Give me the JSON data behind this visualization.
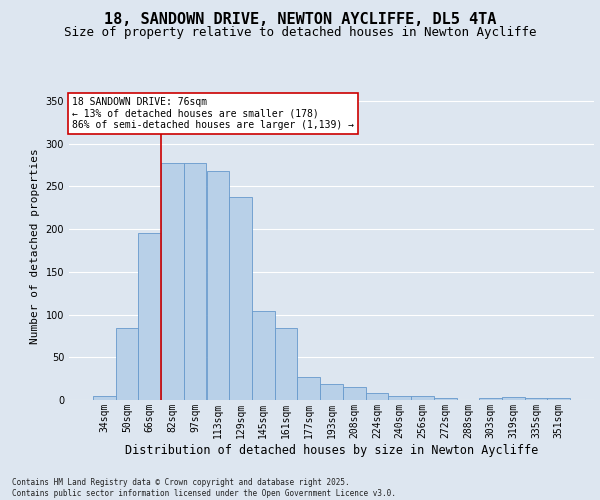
{
  "title": "18, SANDOWN DRIVE, NEWTON AYCLIFFE, DL5 4TA",
  "subtitle": "Size of property relative to detached houses in Newton Aycliffe",
  "xlabel": "Distribution of detached houses by size in Newton Aycliffe",
  "ylabel": "Number of detached properties",
  "categories": [
    "34sqm",
    "50sqm",
    "66sqm",
    "82sqm",
    "97sqm",
    "113sqm",
    "129sqm",
    "145sqm",
    "161sqm",
    "177sqm",
    "193sqm",
    "208sqm",
    "224sqm",
    "240sqm",
    "256sqm",
    "272sqm",
    "288sqm",
    "303sqm",
    "319sqm",
    "335sqm",
    "351sqm"
  ],
  "values": [
    5,
    84,
    196,
    278,
    278,
    268,
    238,
    104,
    84,
    27,
    19,
    15,
    8,
    5,
    5,
    2,
    0,
    2,
    3,
    2,
    2
  ],
  "bar_color": "#b8d0e8",
  "bar_edge_color": "#6699cc",
  "vline_color": "#cc0000",
  "annotation_text": "18 SANDOWN DRIVE: 76sqm\n← 13% of detached houses are smaller (178)\n86% of semi-detached houses are larger (1,139) →",
  "annotation_box_color": "#ffffff",
  "annotation_border_color": "#cc0000",
  "ylim": [
    0,
    360
  ],
  "yticks": [
    0,
    50,
    100,
    150,
    200,
    250,
    300,
    350
  ],
  "background_color": "#dde6f0",
  "plot_background_color": "#dde6f0",
  "grid_color": "#ffffff",
  "footer_text": "Contains HM Land Registry data © Crown copyright and database right 2025.\nContains public sector information licensed under the Open Government Licence v3.0.",
  "title_fontsize": 11,
  "subtitle_fontsize": 9,
  "xlabel_fontsize": 8.5,
  "ylabel_fontsize": 8,
  "tick_fontsize": 7,
  "annotation_fontsize": 7,
  "footer_fontsize": 5.5
}
